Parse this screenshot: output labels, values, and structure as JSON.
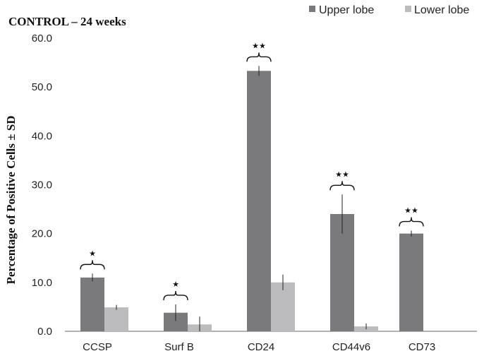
{
  "chart_data": {
    "type": "bar",
    "title": "CONTROL – 24 weeks",
    "xlabel": "",
    "ylabel": "Percentage of Positive Cells ± SD",
    "ylim": [
      0,
      60
    ],
    "yticks": [
      "0.0",
      "10.0",
      "20.0",
      "30.0",
      "40.0",
      "50.0",
      "60.0"
    ],
    "categories": [
      "CCSP",
      "Surf B",
      "CD24",
      "CD44v6",
      "CD73"
    ],
    "legend_position": "top-right",
    "grid": false,
    "series": [
      {
        "name": "Upper lobe",
        "color": "#7a7a7c",
        "values": [
          11.0,
          3.8,
          53.3,
          24.0,
          20.0
        ],
        "errors": [
          0.8,
          1.7,
          1.0,
          4.0,
          0.6
        ]
      },
      {
        "name": "Lower lobe",
        "color": "#bcbcbe",
        "values": [
          4.9,
          1.4,
          10.0,
          1.0,
          0
        ],
        "errors": [
          0.5,
          1.6,
          1.6,
          0.6,
          0
        ]
      }
    ],
    "significance": [
      "★",
      "★",
      "★★",
      "★★",
      "★★"
    ]
  }
}
